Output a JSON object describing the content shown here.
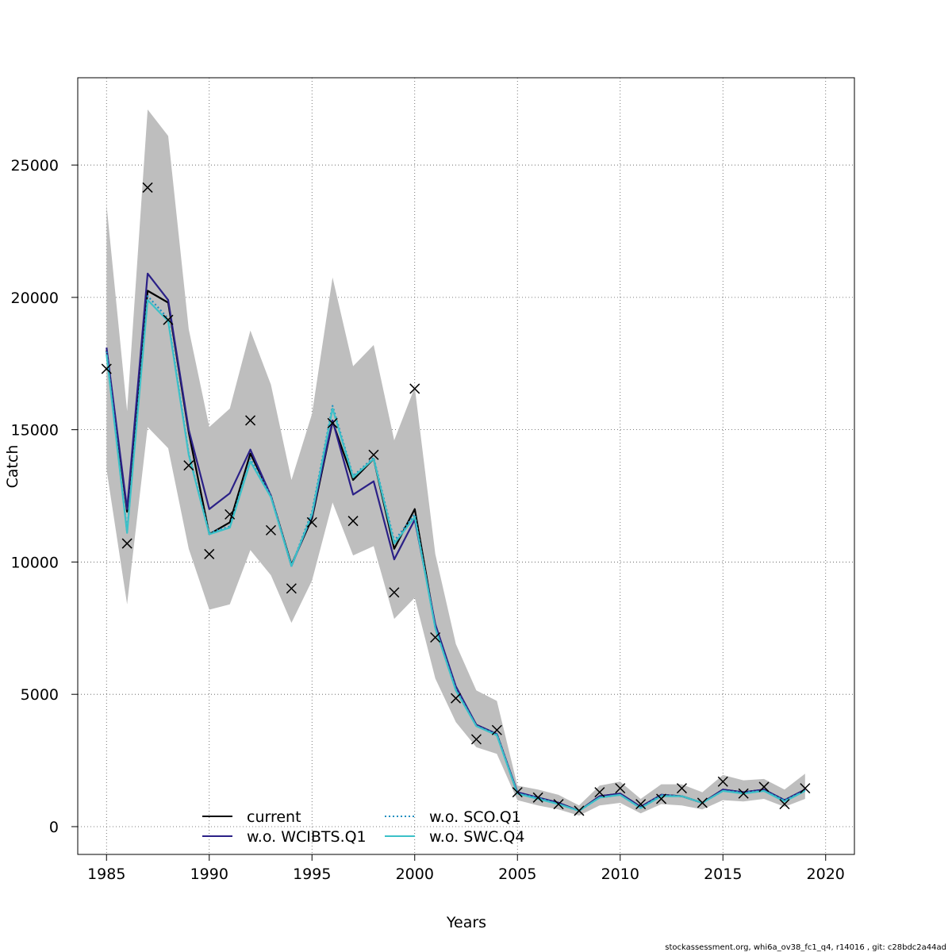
{
  "chart_data": {
    "type": "line",
    "xlabel": "Years",
    "ylabel": "Catch",
    "xlim": [
      1983.6,
      2021.4
    ],
    "ylim": [
      -1050,
      28300
    ],
    "xticks": [
      1985,
      1990,
      1995,
      2000,
      2005,
      2010,
      2015,
      2020
    ],
    "yticks": [
      0,
      5000,
      10000,
      15000,
      20000,
      25000
    ],
    "grid": true,
    "legend_position": "bottom-center",
    "band_color": "#bebebe",
    "x": [
      1985,
      1986,
      1987,
      1988,
      1989,
      1990,
      1991,
      1992,
      1993,
      1994,
      1995,
      1996,
      1997,
      1998,
      1999,
      2000,
      2001,
      2002,
      2003,
      2004,
      2005,
      2006,
      2007,
      2008,
      2009,
      2010,
      2011,
      2012,
      2013,
      2014,
      2015,
      2016,
      2017,
      2018,
      2019
    ],
    "confidence_band": {
      "lower": [
        13500,
        8400,
        15100,
        14300,
        10500,
        8200,
        8400,
        10450,
        9500,
        7700,
        9300,
        12250,
        10250,
        10600,
        7850,
        8650,
        5600,
        3950,
        3000,
        2750,
        1000,
        800,
        650,
        420,
        800,
        900,
        500,
        850,
        800,
        650,
        1000,
        950,
        1050,
        750,
        1050
      ],
      "upper": [
        23500,
        15700,
        27100,
        26100,
        18800,
        15100,
        15800,
        18750,
        16700,
        13100,
        15600,
        20750,
        17400,
        18200,
        14600,
        16600,
        10300,
        6900,
        5150,
        4750,
        1550,
        1400,
        1200,
        800,
        1550,
        1700,
        1050,
        1600,
        1600,
        1300,
        1950,
        1750,
        1800,
        1400,
        2000
      ]
    },
    "series": [
      {
        "name": "current",
        "color": "#000000",
        "dash": "solid",
        "values": [
          18000,
          11900,
          20250,
          19800,
          14900,
          11050,
          11500,
          14100,
          12500,
          9900,
          11650,
          15300,
          13100,
          13900,
          10500,
          12000,
          7550,
          5200,
          3850,
          3500,
          1250,
          1100,
          900,
          600,
          1150,
          1250,
          750,
          1200,
          1150,
          900,
          1400,
          1300,
          1400,
          1000,
          1400
        ]
      },
      {
        "name": "w.o. WCIBTS.Q1",
        "color": "#2b2087",
        "dash": "solid",
        "values": [
          18100,
          12000,
          20900,
          19900,
          15000,
          12000,
          12600,
          14250,
          12500,
          9850,
          11750,
          15350,
          12550,
          13050,
          10100,
          11600,
          7650,
          5300,
          3850,
          3500,
          1300,
          1100,
          900,
          600,
          1150,
          1250,
          750,
          1200,
          1150,
          900,
          1400,
          1300,
          1400,
          1000,
          1400
        ]
      },
      {
        "name": "w.o. SCO.Q1",
        "color": "#1e8fc0",
        "dash": "dotted",
        "values": [
          17950,
          11150,
          20050,
          19200,
          14100,
          11100,
          11350,
          13900,
          12500,
          9850,
          11900,
          15900,
          13250,
          13950,
          10800,
          11800,
          7500,
          5200,
          3800,
          3500,
          1250,
          1100,
          850,
          600,
          1100,
          1200,
          700,
          1200,
          1150,
          900,
          1350,
          1300,
          1350,
          1000,
          1350
        ]
      },
      {
        "name": "w.o. SWC.Q4",
        "color": "#3cc1c8",
        "dash": "solid",
        "values": [
          17850,
          11100,
          19900,
          19100,
          14050,
          11050,
          11300,
          13800,
          12450,
          9850,
          11800,
          15800,
          13200,
          13900,
          10700,
          11700,
          7500,
          5150,
          3800,
          3450,
          1250,
          1050,
          850,
          600,
          1100,
          1200,
          700,
          1150,
          1150,
          900,
          1350,
          1250,
          1350,
          950,
          1350
        ]
      }
    ],
    "observed": {
      "marker": "x",
      "values": [
        17300,
        10700,
        24150,
        19150,
        13650,
        10300,
        11800,
        15350,
        11200,
        9000,
        11500,
        15250,
        11550,
        14050,
        8850,
        16550,
        7150,
        4850,
        3300,
        3650,
        1300,
        1100,
        850,
        600,
        1300,
        1450,
        850,
        1050,
        1450,
        900,
        1700,
        1250,
        1500,
        850,
        1450
      ]
    }
  },
  "legend": {
    "items": [
      "current",
      "w.o. SCO.Q1",
      "w.o. WCIBTS.Q1",
      "w.o. SWC.Q4"
    ]
  },
  "footer": {
    "text": "stockassessment.org, whi6a_ov38_fc1_q4, r14016 , git: c28bdc2a44ad"
  }
}
